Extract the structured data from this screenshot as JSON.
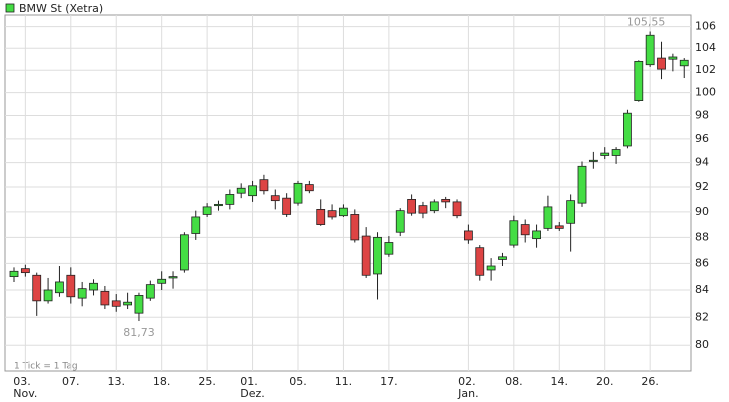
{
  "chart_data": {
    "type": "candlestick",
    "legend": "BMW St (Xetra)",
    "footnote": "1 Tick = 1 Tag",
    "annotations": [
      "105,55",
      "81,73"
    ],
    "categories": [
      null,
      "03.\nNov.",
      null,
      null,
      null,
      "07.",
      null,
      null,
      null,
      "13.",
      null,
      null,
      null,
      "18.",
      null,
      null,
      null,
      "25.",
      null,
      null,
      null,
      "01.\nDez.",
      null,
      null,
      null,
      "05.",
      null,
      null,
      null,
      "11.",
      null,
      null,
      null,
      "17.",
      null,
      null,
      null,
      null,
      null,
      null,
      "02.\nJan.",
      null,
      null,
      null,
      "08.",
      null,
      null,
      null,
      "14.",
      null,
      null,
      null,
      "20.",
      null,
      null,
      null,
      "26.",
      null,
      null,
      null
    ],
    "open": [
      85.0,
      85.6,
      85.1,
      83.2,
      83.8,
      85.1,
      83.4,
      84.0,
      83.9,
      83.2,
      82.9,
      82.3,
      83.4,
      84.5,
      84.9,
      85.5,
      88.3,
      89.8,
      90.5,
      90.6,
      91.5,
      91.3,
      92.6,
      91.3,
      91.1,
      90.7,
      92.2,
      90.2,
      90.1,
      89.7,
      89.8,
      88.1,
      85.2,
      86.7,
      88.4,
      91.0,
      90.5,
      90.1,
      91.0,
      90.8,
      88.5,
      87.2,
      85.5,
      86.3,
      87.4,
      89.0,
      87.9,
      88.7,
      88.9,
      89.1,
      90.7,
      94.1,
      94.6,
      94.6,
      95.4,
      99.3,
      102.5,
      103.1,
      103.0,
      102.4
    ],
    "high": [
      85.7,
      85.9,
      85.3,
      84.9,
      85.8,
      85.7,
      84.6,
      84.8,
      84.3,
      83.7,
      83.8,
      83.8,
      84.7,
      85.4,
      85.4,
      88.4,
      90.1,
      90.7,
      90.9,
      91.8,
      92.3,
      92.5,
      93.0,
      91.8,
      91.5,
      92.5,
      92.5,
      91.0,
      90.6,
      90.6,
      90.2,
      88.8,
      88.4,
      88.1,
      90.3,
      91.4,
      90.8,
      91.0,
      91.2,
      91.0,
      89.0,
      87.4,
      86.4,
      86.8,
      89.7,
      89.4,
      89.0,
      91.3,
      89.2,
      91.4,
      94.1,
      94.9,
      95.3,
      95.3,
      98.5,
      102.9,
      105.55,
      104.6,
      103.5,
      103.1
    ],
    "low": [
      84.6,
      85.0,
      82.1,
      83.0,
      83.5,
      83.0,
      82.8,
      83.6,
      82.6,
      82.4,
      82.6,
      81.73,
      83.2,
      84.0,
      84.1,
      85.3,
      87.8,
      89.6,
      90.1,
      90.2,
      91.1,
      90.8,
      91.4,
      90.2,
      89.6,
      90.5,
      91.5,
      88.9,
      89.4,
      89.6,
      87.6,
      84.9,
      83.3,
      86.5,
      88.1,
      89.7,
      89.5,
      89.9,
      90.3,
      89.5,
      87.5,
      84.7,
      84.7,
      85.8,
      87.2,
      87.6,
      87.2,
      88.5,
      88.5,
      86.9,
      90.4,
      93.5,
      94.3,
      93.9,
      95.2,
      99.2,
      102.3,
      101.2,
      101.9,
      101.3
    ],
    "close": [
      85.4,
      85.3,
      83.2,
      84.0,
      84.6,
      83.5,
      84.1,
      84.5,
      82.9,
      82.8,
      83.1,
      83.6,
      84.4,
      84.8,
      85.0,
      88.2,
      89.6,
      90.4,
      90.6,
      91.4,
      91.9,
      92.1,
      91.7,
      90.9,
      89.8,
      92.3,
      91.7,
      89.0,
      89.6,
      90.3,
      87.8,
      85.1,
      88.0,
      87.6,
      90.1,
      89.9,
      89.9,
      90.8,
      90.8,
      89.7,
      87.8,
      85.1,
      85.8,
      86.5,
      89.3,
      88.2,
      88.5,
      90.4,
      88.7,
      90.9,
      93.7,
      94.2,
      94.8,
      95.1,
      98.2,
      102.8,
      105.2,
      102.1,
      103.2,
      102.9
    ],
    "up_color": "#44dd44",
    "down_color": "#dd4444",
    "yscale": "log",
    "ylim": [
      78.2,
      107.1
    ],
    "yticks": [
      80,
      82,
      84,
      86,
      88,
      90,
      92,
      94,
      96,
      98,
      100,
      102,
      104,
      106
    ],
    "grid": true
  }
}
